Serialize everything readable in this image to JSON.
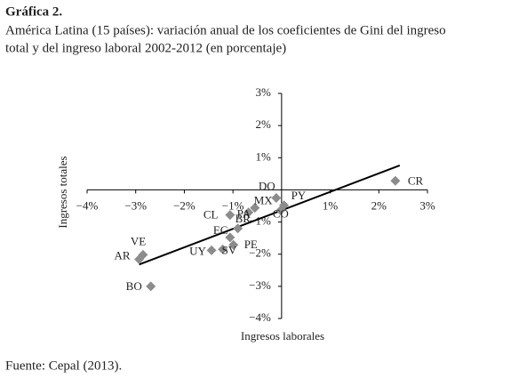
{
  "chart_data": {
    "type": "scatter",
    "title": "Gráfica 2.",
    "subtitle": [
      "América Latina (15 países): variación anual de los coeficientes de Gini del ingreso",
      "total y del ingreso laboral  2002-2012 (en porcentaje)"
    ],
    "x_label": "Ingresos laborales",
    "y_label": "Ingresos totales",
    "source": "Fuente: Cepal (2013).",
    "labels": [
      "CR",
      "DO",
      "PY",
      "MX",
      "CO",
      "PA",
      "CL",
      "BR",
      "EC",
      "PE",
      "SV",
      "UY",
      "VE",
      "AR",
      "BO"
    ],
    "x": [
      2.34,
      -0.11,
      0.05,
      -0.55,
      -0.02,
      -0.68,
      -1.06,
      -0.9,
      -1.06,
      -0.99,
      -1.21,
      -1.44,
      -2.85,
      -2.93,
      -2.69
    ],
    "y": [
      0.28,
      -0.25,
      -0.48,
      -0.56,
      -0.64,
      -0.7,
      -0.78,
      -1.2,
      -1.48,
      -1.71,
      -1.85,
      -1.88,
      -2.02,
      -2.16,
      -3.0
    ],
    "color": "#8c8c8c",
    "trendline": {
      "x": [
        -2.93,
        2.43
      ],
      "y": [
        -2.32,
        0.76
      ],
      "color": "#000000"
    },
    "xlim": [
      -4,
      3
    ],
    "ylim": [
      -4,
      3
    ],
    "xticks": [
      {
        "value": -4,
        "label": "−4%"
      },
      {
        "value": -3,
        "label": "−3%"
      },
      {
        "value": -2,
        "label": "−2%"
      },
      {
        "value": -1,
        "label": "−1%"
      },
      {
        "value": 1,
        "label": "1%"
      },
      {
        "value": 2,
        "label": "2%"
      },
      {
        "value": 3,
        "label": "3%"
      }
    ],
    "yticks": [
      {
        "value": -4,
        "label": "−4%"
      },
      {
        "value": -3,
        "label": "−3%"
      },
      {
        "value": -2,
        "label": "−2%"
      },
      {
        "value": -1,
        "label": "−1%"
      },
      {
        "value": 1,
        "label": "1%"
      },
      {
        "value": 2,
        "label": "2%"
      },
      {
        "value": 3,
        "label": "3%"
      }
    ]
  }
}
